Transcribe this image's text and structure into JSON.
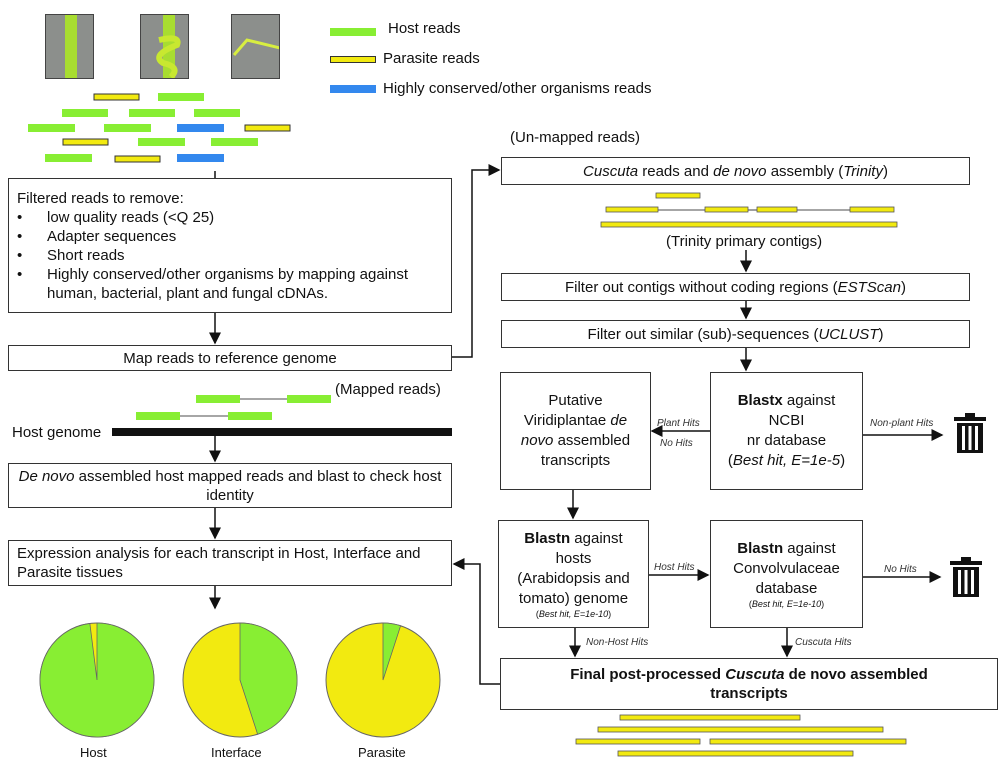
{
  "legend": [
    {
      "label": "Host reads",
      "color": "#88ee33"
    },
    {
      "label": "Parasite reads",
      "color": "#f2ea10"
    },
    {
      "label": "Highly conserved/other organisms reads",
      "color": "#3388ee"
    }
  ],
  "filter_box": {
    "title": "Filtered reads to remove:",
    "items": [
      "low quality reads (<Q 25)",
      "Adapter sequences",
      "Short reads",
      "Highly conserved/other organisms by mapping against human, bacterial, plant and fungal cDNAs."
    ]
  },
  "map_box": "Map reads to reference genome",
  "mapped_reads": "(Mapped reads)",
  "host_genome": "Host genome",
  "denovo_box": {
    "italic": "De novo",
    "rest": " assembled host mapped reads and blast to check host identity"
  },
  "expression_box": "Expression analysis for each transcript in Host, Interface and Parasite tissues",
  "pies": [
    {
      "label": "Host",
      "host_fraction": 0.98
    },
    {
      "label": "Interface",
      "host_fraction": 0.45
    },
    {
      "label": "Parasite",
      "host_fraction": 0.05
    }
  ],
  "unmapped": "(Un-mapped reads)",
  "cuscuta_box": {
    "a": "Cuscuta",
    "b": " reads and ",
    "c": "de novo",
    "d": " assembly (",
    "e": "Trinity",
    "f": ")"
  },
  "trinity_contigs": "(Trinity primary contigs)",
  "estscan_box": {
    "a": "Filter out contigs without coding regions (",
    "b": "ESTScan",
    "c": ")"
  },
  "uclust_box": {
    "a": "Filter out similar (sub)-sequences (",
    "b": "UCLUST",
    "c": ")"
  },
  "putative_box": {
    "a": "Putative",
    "b": "Viridiplantae ",
    "c": "de",
    "d": "novo",
    "e": " assembled",
    "f": "transcripts"
  },
  "blastx_box": {
    "a": "Blastx",
    "b": " against",
    "c": "NCBI",
    "d": "nr database",
    "e": "Best hit, E=1e-5"
  },
  "blastn_hosts_box": {
    "a": "Blastn",
    "b": " against",
    "c": "hosts",
    "d": "(Arabidopsis and",
    "e": "tomato) genome",
    "f": "Best hit, E=1e-10"
  },
  "blastn_conv_box": {
    "a": "Blastn",
    "b": " against",
    "c": "Convolvulaceae",
    "d": "database",
    "e": "Best hit, E=1e-10"
  },
  "final_box": {
    "a": "Final post-processed ",
    "b": "Cuscuta",
    "c": " de novo assembled",
    "d": "transcripts"
  },
  "edge_labels": {
    "plant_hits": "Plant Hits",
    "no_hits_left": "No Hits",
    "non_plant_hits": "Non-plant Hits",
    "host_hits": "Host Hits",
    "no_hits_right": "No Hits",
    "non_host_hits": "Non-Host Hits",
    "cuscuta_hits": "Cuscuta Hits"
  }
}
